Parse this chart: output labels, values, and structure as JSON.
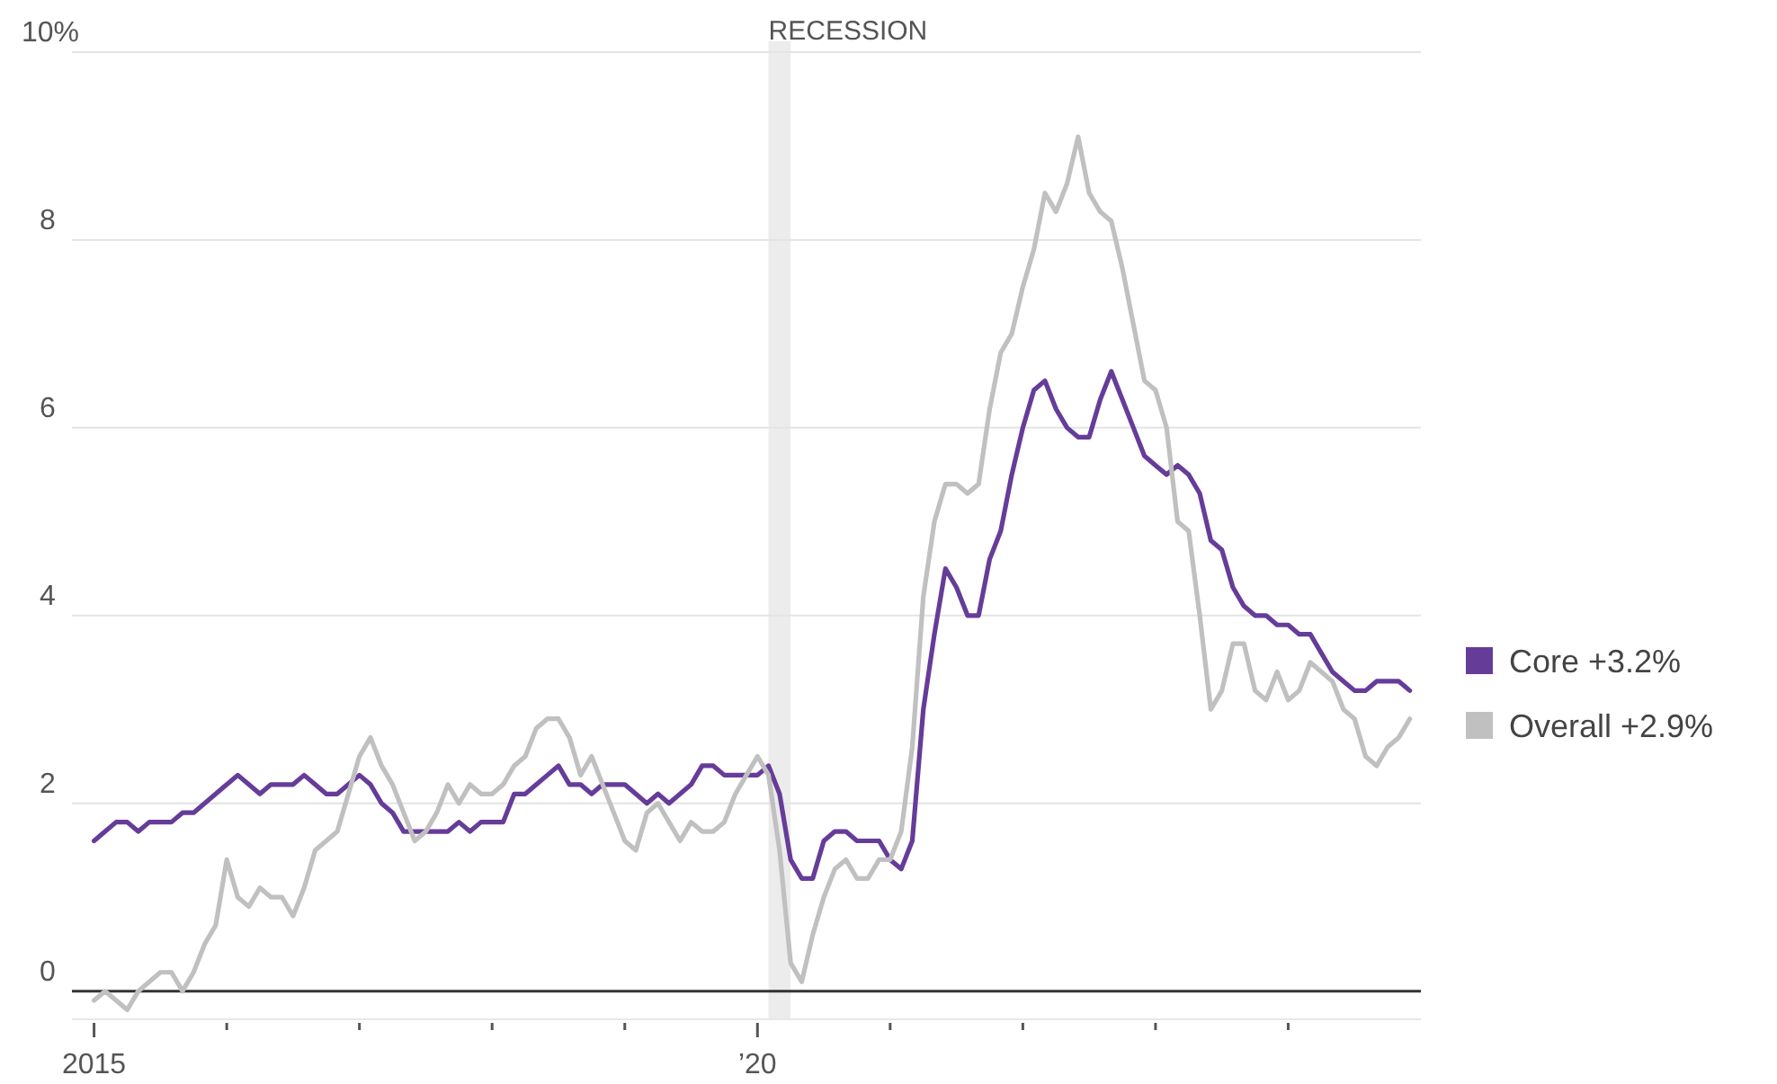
{
  "chart_data": {
    "type": "line",
    "x": [
      "2015-01",
      "2015-02",
      "2015-03",
      "2015-04",
      "2015-05",
      "2015-06",
      "2015-07",
      "2015-08",
      "2015-09",
      "2015-10",
      "2015-11",
      "2015-12",
      "2016-01",
      "2016-02",
      "2016-03",
      "2016-04",
      "2016-05",
      "2016-06",
      "2016-07",
      "2016-08",
      "2016-09",
      "2016-10",
      "2016-11",
      "2016-12",
      "2017-01",
      "2017-02",
      "2017-03",
      "2017-04",
      "2017-05",
      "2017-06",
      "2017-07",
      "2017-08",
      "2017-09",
      "2017-10",
      "2017-11",
      "2017-12",
      "2018-01",
      "2018-02",
      "2018-03",
      "2018-04",
      "2018-05",
      "2018-06",
      "2018-07",
      "2018-08",
      "2018-09",
      "2018-10",
      "2018-11",
      "2018-12",
      "2019-01",
      "2019-02",
      "2019-03",
      "2019-04",
      "2019-05",
      "2019-06",
      "2019-07",
      "2019-08",
      "2019-09",
      "2019-10",
      "2019-11",
      "2019-12",
      "2020-01",
      "2020-02",
      "2020-03",
      "2020-04",
      "2020-05",
      "2020-06",
      "2020-07",
      "2020-08",
      "2020-09",
      "2020-10",
      "2020-11",
      "2020-12",
      "2021-01",
      "2021-02",
      "2021-03",
      "2021-04",
      "2021-05",
      "2021-06",
      "2021-07",
      "2021-08",
      "2021-09",
      "2021-10",
      "2021-11",
      "2021-12",
      "2022-01",
      "2022-02",
      "2022-03",
      "2022-04",
      "2022-05",
      "2022-06",
      "2022-07",
      "2022-08",
      "2022-09",
      "2022-10",
      "2022-11",
      "2022-12",
      "2023-01",
      "2023-02",
      "2023-03",
      "2023-04",
      "2023-05",
      "2023-06",
      "2023-07",
      "2023-08",
      "2023-09",
      "2023-10",
      "2023-11",
      "2023-12",
      "2024-01",
      "2024-02",
      "2024-03",
      "2024-04",
      "2024-05",
      "2024-06",
      "2024-07",
      "2024-08",
      "2024-09",
      "2024-10",
      "2024-11",
      "2024-12"
    ],
    "series": [
      {
        "name": "Core +3.2%",
        "color": "#663c99",
        "values": [
          1.6,
          1.7,
          1.8,
          1.8,
          1.7,
          1.8,
          1.8,
          1.8,
          1.9,
          1.9,
          2.0,
          2.1,
          2.2,
          2.3,
          2.2,
          2.1,
          2.2,
          2.2,
          2.2,
          2.3,
          2.2,
          2.1,
          2.1,
          2.2,
          2.3,
          2.2,
          2.0,
          1.9,
          1.7,
          1.7,
          1.7,
          1.7,
          1.7,
          1.8,
          1.7,
          1.8,
          1.8,
          1.8,
          2.1,
          2.1,
          2.2,
          2.3,
          2.4,
          2.2,
          2.2,
          2.1,
          2.2,
          2.2,
          2.2,
          2.1,
          2.0,
          2.1,
          2.0,
          2.1,
          2.2,
          2.4,
          2.4,
          2.3,
          2.3,
          2.3,
          2.3,
          2.4,
          2.1,
          1.4,
          1.2,
          1.2,
          1.6,
          1.7,
          1.7,
          1.6,
          1.6,
          1.6,
          1.4,
          1.3,
          1.6,
          3.0,
          3.8,
          4.5,
          4.3,
          4.0,
          4.0,
          4.6,
          4.9,
          5.5,
          6.0,
          6.4,
          6.5,
          6.2,
          6.0,
          5.9,
          5.9,
          6.3,
          6.6,
          6.3,
          6.0,
          5.7,
          5.6,
          5.5,
          5.6,
          5.5,
          5.3,
          4.8,
          4.7,
          4.3,
          4.1,
          4.0,
          4.0,
          3.9,
          3.9,
          3.8,
          3.8,
          3.6,
          3.4,
          3.3,
          3.2,
          3.2,
          3.3,
          3.3,
          3.3,
          3.2
        ]
      },
      {
        "name": "Overall +2.9%",
        "color": "#c0c0c0",
        "values": [
          -0.1,
          0.0,
          -0.1,
          -0.2,
          0.0,
          0.1,
          0.2,
          0.2,
          0.0,
          0.2,
          0.5,
          0.7,
          1.4,
          1.0,
          0.9,
          1.1,
          1.0,
          1.0,
          0.8,
          1.1,
          1.5,
          1.6,
          1.7,
          2.1,
          2.5,
          2.7,
          2.4,
          2.2,
          1.9,
          1.6,
          1.7,
          1.9,
          2.2,
          2.0,
          2.2,
          2.1,
          2.1,
          2.2,
          2.4,
          2.5,
          2.8,
          2.9,
          2.9,
          2.7,
          2.3,
          2.5,
          2.2,
          1.9,
          1.6,
          1.5,
          1.9,
          2.0,
          1.8,
          1.6,
          1.8,
          1.7,
          1.7,
          1.8,
          2.1,
          2.3,
          2.5,
          2.3,
          1.5,
          0.3,
          0.1,
          0.6,
          1.0,
          1.3,
          1.4,
          1.2,
          1.2,
          1.4,
          1.4,
          1.7,
          2.6,
          4.2,
          5.0,
          5.4,
          5.4,
          5.3,
          5.4,
          6.2,
          6.8,
          7.0,
          7.5,
          7.9,
          8.5,
          8.3,
          8.6,
          9.1,
          8.5,
          8.3,
          8.2,
          7.7,
          7.1,
          6.5,
          6.4,
          6.0,
          5.0,
          4.9,
          4.0,
          3.0,
          3.2,
          3.7,
          3.7,
          3.2,
          3.1,
          3.4,
          3.1,
          3.2,
          3.5,
          3.4,
          3.3,
          3.0,
          2.9,
          2.5,
          2.4,
          2.6,
          2.7,
          2.9
        ]
      }
    ],
    "xlim": [
      "2014-11",
      "2025-01"
    ],
    "xticks": [
      {
        "value": "2015-01",
        "label": "2015"
      },
      {
        "value": "2016-01",
        "label": null
      },
      {
        "value": "2017-01",
        "label": null
      },
      {
        "value": "2018-01",
        "label": null
      },
      {
        "value": "2019-01",
        "label": null
      },
      {
        "value": "2020-01",
        "label": "’20"
      },
      {
        "value": "2021-01",
        "label": null
      },
      {
        "value": "2022-01",
        "label": null
      },
      {
        "value": "2023-01",
        "label": null
      },
      {
        "value": "2024-01",
        "label": null
      }
    ],
    "ylim": [
      -0.3,
      10
    ],
    "yticks": [
      0,
      2,
      4,
      6,
      8,
      {
        "value": 10,
        "label": "10%"
      }
    ],
    "bands": [
      {
        "axis": "x",
        "from": "2020-02",
        "to": "2020-04",
        "label": "RECESSION",
        "color": "#ececec"
      }
    ],
    "grid": "y",
    "legend": "right",
    "line_style": "solid",
    "marker": "none"
  }
}
